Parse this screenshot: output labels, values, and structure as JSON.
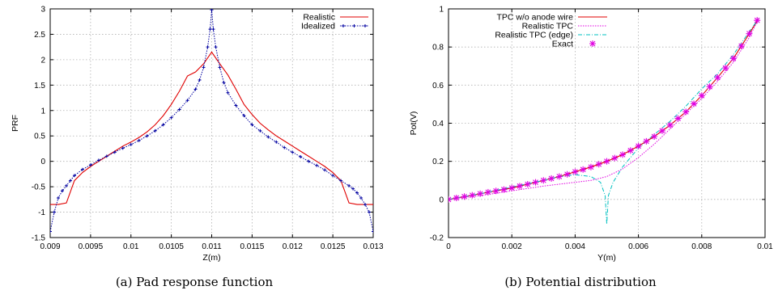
{
  "chart_data": [
    {
      "type": "line",
      "caption": "(a) Pad response function",
      "xlabel": "Z(m)",
      "ylabel": "PRF",
      "xlim": [
        0.009,
        0.013
      ],
      "ylim": [
        -1.5,
        3
      ],
      "xticks": [
        "0.009",
        "0.0095",
        "0.01",
        "0.0105",
        "0.011",
        "0.0115",
        "0.012",
        "0.0125",
        "0.013"
      ],
      "yticks": [
        "-1.5",
        "-1",
        "-0.5",
        "0",
        "0.5",
        "1",
        "1.5",
        "2",
        "2.5",
        "3"
      ],
      "grid": true,
      "legend_position": "top-right",
      "series": [
        {
          "name": "Realistic",
          "color": "#e00000",
          "style": "solid",
          "x": [
            0.009,
            0.0091,
            0.0092,
            0.0093,
            0.0094,
            0.0095,
            0.0096,
            0.0097,
            0.0098,
            0.0099,
            0.01,
            0.0101,
            0.0102,
            0.0103,
            0.0104,
            0.0105,
            0.0106,
            0.0107,
            0.0108,
            0.0109,
            0.011,
            0.0111,
            0.0112,
            0.0113,
            0.0114,
            0.0115,
            0.0116,
            0.0117,
            0.0118,
            0.0119,
            0.012,
            0.0121,
            0.0122,
            0.0123,
            0.0124,
            0.0125,
            0.0126,
            0.0127,
            0.0128,
            0.0129,
            0.013
          ],
          "y": [
            -0.85,
            -0.85,
            -0.82,
            -0.38,
            -0.22,
            -0.1,
            0.0,
            0.1,
            0.2,
            0.3,
            0.38,
            0.47,
            0.58,
            0.72,
            0.9,
            1.12,
            1.38,
            1.68,
            1.76,
            1.92,
            2.15,
            1.92,
            1.7,
            1.42,
            1.12,
            0.92,
            0.75,
            0.62,
            0.5,
            0.4,
            0.3,
            0.2,
            0.1,
            0.0,
            -0.1,
            -0.22,
            -0.38,
            -0.82,
            -0.85,
            -0.85,
            -0.85
          ]
        },
        {
          "name": "Idealized",
          "color": "#0000a0",
          "style": "dotted-markers",
          "x": [
            0.009,
            0.00905,
            0.0091,
            0.00915,
            0.0092,
            0.00925,
            0.0093,
            0.0094,
            0.0095,
            0.0096,
            0.0097,
            0.0098,
            0.0099,
            0.01,
            0.0101,
            0.0102,
            0.0103,
            0.0104,
            0.0105,
            0.0106,
            0.0107,
            0.0108,
            0.01085,
            0.0109,
            0.01095,
            0.01098,
            0.011,
            0.01102,
            0.01105,
            0.0111,
            0.01115,
            0.0112,
            0.0113,
            0.0114,
            0.0115,
            0.0116,
            0.0117,
            0.0118,
            0.0119,
            0.012,
            0.0121,
            0.0122,
            0.0123,
            0.0124,
            0.0125,
            0.0126,
            0.0127,
            0.01275,
            0.0128,
            0.01285,
            0.0129,
            0.01295,
            0.013
          ],
          "y": [
            -1.38,
            -1.0,
            -0.72,
            -0.58,
            -0.48,
            -0.38,
            -0.28,
            -0.16,
            -0.07,
            0.02,
            0.1,
            0.18,
            0.26,
            0.33,
            0.41,
            0.5,
            0.6,
            0.72,
            0.86,
            1.02,
            1.2,
            1.42,
            1.6,
            1.85,
            2.25,
            2.6,
            2.98,
            2.6,
            2.25,
            1.85,
            1.55,
            1.35,
            1.1,
            0.9,
            0.72,
            0.6,
            0.48,
            0.38,
            0.27,
            0.18,
            0.09,
            0.0,
            -0.08,
            -0.17,
            -0.28,
            -0.38,
            -0.48,
            -0.54,
            -0.62,
            -0.72,
            -0.85,
            -1.0,
            -1.38
          ]
        }
      ]
    },
    {
      "type": "line",
      "caption": "(b) Potential distribution",
      "xlabel": "Y(m)",
      "ylabel": "Pot(V)",
      "xlim": [
        0,
        0.01
      ],
      "ylim": [
        -0.2,
        1
      ],
      "xticks": [
        "0",
        "0.002",
        "0.004",
        "0.006",
        "0.008",
        "0.01"
      ],
      "yticks": [
        "-0.2",
        "0",
        "0.2",
        "0.4",
        "0.6",
        "0.8",
        "1"
      ],
      "grid": true,
      "legend_position": "top-left",
      "series": [
        {
          "name": "TPC w/o anode wire",
          "color": "#e00000",
          "style": "solid",
          "x": [
            0,
            0.0005,
            0.001,
            0.0015,
            0.002,
            0.0025,
            0.003,
            0.0035,
            0.004,
            0.0045,
            0.005,
            0.0055,
            0.006,
            0.0065,
            0.007,
            0.0075,
            0.008,
            0.0085,
            0.009,
            0.0095,
            0.0098
          ],
          "y": [
            0,
            0.015,
            0.03,
            0.045,
            0.06,
            0.08,
            0.1,
            0.12,
            0.145,
            0.17,
            0.2,
            0.235,
            0.28,
            0.33,
            0.39,
            0.46,
            0.545,
            0.64,
            0.74,
            0.87,
            0.95
          ]
        },
        {
          "name": "Realistic TPC",
          "color": "#e000e0",
          "style": "dotted",
          "x": [
            0,
            0.001,
            0.002,
            0.003,
            0.004,
            0.0045,
            0.005,
            0.0055,
            0.006,
            0.0065,
            0.007,
            0.0075,
            0.008,
            0.0085,
            0.009,
            0.0095,
            0.0098
          ],
          "y": [
            0,
            0.02,
            0.045,
            0.07,
            0.09,
            0.1,
            0.12,
            0.16,
            0.22,
            0.29,
            0.37,
            0.45,
            0.53,
            0.62,
            0.72,
            0.85,
            0.95
          ]
        },
        {
          "name": "Realistic TPC (edge)",
          "color": "#00c0c0",
          "style": "dashed",
          "x": [
            0,
            0.001,
            0.002,
            0.003,
            0.0035,
            0.004,
            0.0045,
            0.0048,
            0.00495,
            0.005,
            0.00505,
            0.0052,
            0.0055,
            0.006,
            0.0065,
            0.007,
            0.0075,
            0.008,
            0.0085,
            0.009,
            0.0095,
            0.0098
          ],
          "y": [
            0,
            0.03,
            0.065,
            0.1,
            0.12,
            0.13,
            0.12,
            0.09,
            0.02,
            -0.13,
            0.02,
            0.09,
            0.17,
            0.27,
            0.34,
            0.41,
            0.49,
            0.58,
            0.66,
            0.76,
            0.88,
            0.95
          ]
        },
        {
          "name": "Exact",
          "color": "#e000e0",
          "style": "markers",
          "x": [
            0,
            0.00025,
            0.0005,
            0.00075,
            0.001,
            0.00125,
            0.0015,
            0.00175,
            0.002,
            0.00225,
            0.0025,
            0.00275,
            0.003,
            0.00325,
            0.0035,
            0.00375,
            0.004,
            0.00425,
            0.0045,
            0.00475,
            0.005,
            0.00525,
            0.0055,
            0.00575,
            0.006,
            0.00625,
            0.0065,
            0.00675,
            0.007,
            0.00725,
            0.0075,
            0.00775,
            0.008,
            0.00825,
            0.0085,
            0.00875,
            0.009,
            0.00925,
            0.0095,
            0.00975
          ],
          "y": [
            0,
            0.008,
            0.015,
            0.022,
            0.03,
            0.038,
            0.045,
            0.052,
            0.06,
            0.07,
            0.08,
            0.09,
            0.1,
            0.11,
            0.12,
            0.132,
            0.145,
            0.157,
            0.17,
            0.185,
            0.2,
            0.217,
            0.235,
            0.257,
            0.28,
            0.305,
            0.33,
            0.36,
            0.39,
            0.425,
            0.46,
            0.502,
            0.545,
            0.592,
            0.64,
            0.69,
            0.74,
            0.805,
            0.87,
            0.94
          ]
        }
      ]
    }
  ]
}
